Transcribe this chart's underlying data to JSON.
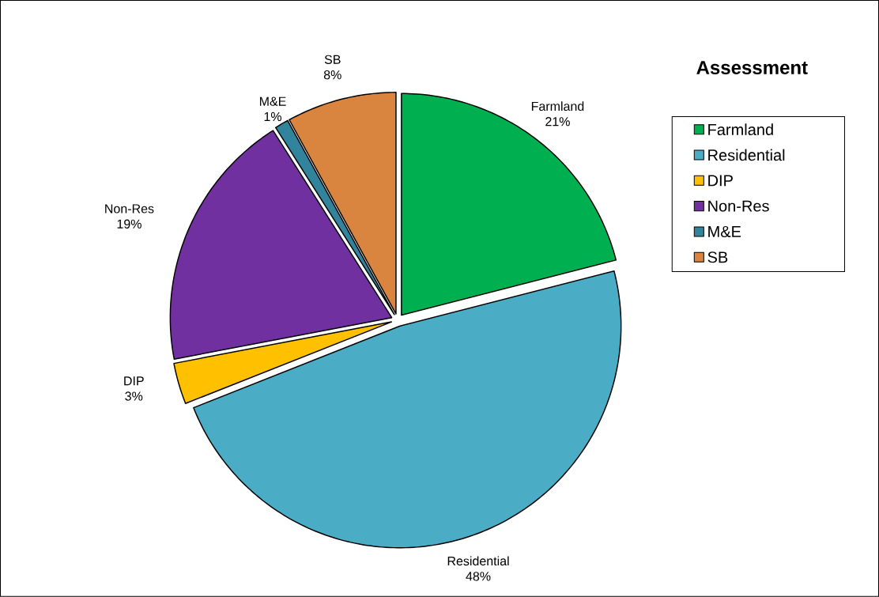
{
  "chart_data": {
    "type": "pie",
    "title": "Assessment",
    "categories": [
      "Farmland",
      "Residential",
      "DIP",
      "Non-Res",
      "M&E",
      "SB"
    ],
    "values": [
      21,
      48,
      3,
      19,
      1,
      8
    ],
    "value_labels": [
      "21%",
      "48%",
      "3%",
      "19%",
      "1%",
      "8%"
    ],
    "colors": [
      "#00b050",
      "#4bacc6",
      "#ffc000",
      "#7030a0",
      "#31849b",
      "#d9843f"
    ],
    "legend": "right"
  }
}
